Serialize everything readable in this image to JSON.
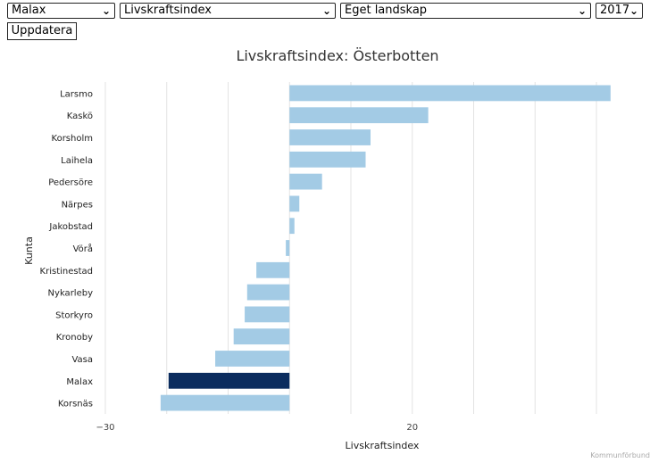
{
  "controls": {
    "municipality": "Malax",
    "indicator": "Livskraftsindex",
    "region": "Eget landskap",
    "year": "2017",
    "update_label": "Uppdatera"
  },
  "footer": {
    "credit": "Kommunförbund"
  },
  "chart_data": {
    "type": "bar",
    "orientation": "horizontal",
    "title": "Livskraftsindex: Österbotten",
    "xlabel": "Livskraftsindex",
    "ylabel": "Kunta",
    "xlim": [
      -30,
      50
    ],
    "xticks": [
      -30,
      20
    ],
    "gridlines": [
      -30,
      -20,
      -10,
      0,
      10,
      20,
      30,
      40,
      50
    ],
    "highlight_color": "#0b2c5e",
    "bar_color": "#a3cbe5",
    "highlight": "Malax",
    "categories": [
      "Larsmo",
      "Kaskö",
      "Korsholm",
      "Laihela",
      "Pedersöre",
      "Närpes",
      "Jakobstad",
      "Vörå",
      "Kristinestad",
      "Nykarleby",
      "Storkyro",
      "Kronoby",
      "Vasa",
      "Malax",
      "Korsnäs"
    ],
    "values": [
      52.3,
      22.6,
      13.2,
      12.4,
      5.3,
      1.6,
      0.8,
      -0.6,
      -5.4,
      -6.9,
      -7.3,
      -9.1,
      -12.1,
      -19.7,
      -21.0
    ]
  }
}
